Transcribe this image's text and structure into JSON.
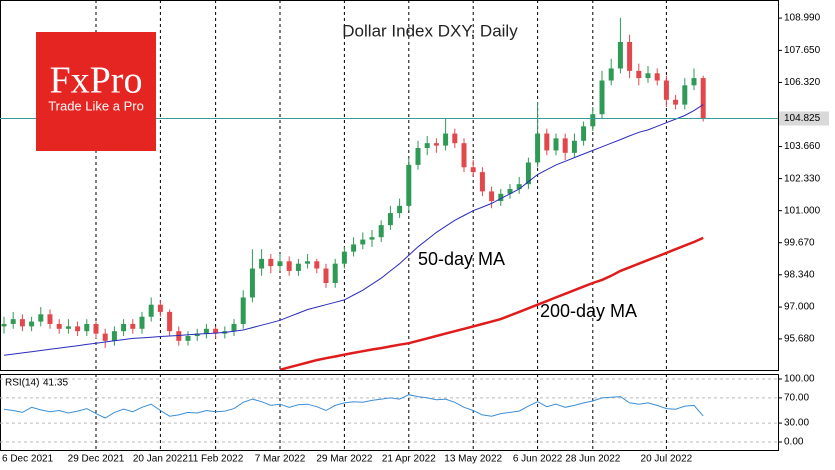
{
  "chart_data": {
    "type": "candlestick",
    "title": "Dollar Index DXY, Daily",
    "logo_text": "FxPro",
    "logo_tagline": "Trade Like a Pro",
    "categories": [
      "6 Dec 2021",
      null,
      null,
      null,
      null,
      null,
      null,
      null,
      null,
      null,
      "29 Dec 2021",
      null,
      null,
      null,
      null,
      null,
      null,
      "20 Jan 2022",
      null,
      null,
      null,
      null,
      null,
      "11 Feb 2022",
      null,
      null,
      null,
      null,
      null,
      null,
      "7 Mar 2022",
      null,
      null,
      null,
      null,
      null,
      null,
      "29 Mar 2022",
      null,
      null,
      null,
      null,
      null,
      null,
      "21 Apr 2022",
      null,
      null,
      null,
      null,
      null,
      null,
      "13 May 2022",
      null,
      null,
      null,
      null,
      null,
      null,
      "6 Jun 2022",
      null,
      null,
      null,
      null,
      null,
      "28 Jun 2022",
      null,
      null,
      null,
      null,
      null,
      null,
      null,
      "20 Jul 2022",
      null,
      null,
      null,
      null
    ],
    "open": [
      96.2,
      96.3,
      96.5,
      96.2,
      96.4,
      96.7,
      96.3,
      96.1,
      96.2,
      96.0,
      96.3,
      95.9,
      95.6,
      96.0,
      96.3,
      96.1,
      96.6,
      97.1,
      96.8,
      96.0,
      95.6,
      95.8,
      95.9,
      96.1,
      95.9,
      96.0,
      96.3,
      97.4,
      98.6,
      99.0,
      98.7,
      98.9,
      98.5,
      98.8,
      98.9,
      98.6,
      98.0,
      98.8,
      99.3,
      99.6,
      99.8,
      99.9,
      100.4,
      100.9,
      101.2,
      102.9,
      103.6,
      103.8,
      103.7,
      104.2,
      103.8,
      102.8,
      102.6,
      101.8,
      101.4,
      101.7,
      101.9,
      102.1,
      103.0,
      104.2,
      103.5,
      104.0,
      103.4,
      103.9,
      104.5,
      105.0,
      106.4,
      106.9,
      108.0,
      106.8,
      106.5,
      106.7,
      106.4,
      105.6,
      105.4,
      106.2,
      106.5
    ],
    "high": [
      96.6,
      96.8,
      96.7,
      96.6,
      97.0,
      96.9,
      96.5,
      96.5,
      96.4,
      96.5,
      96.4,
      96.1,
      96.2,
      96.5,
      96.5,
      96.8,
      97.4,
      97.3,
      96.9,
      96.2,
      96.0,
      96.1,
      96.3,
      96.2,
      96.2,
      96.5,
      97.7,
      99.4,
      99.4,
      99.2,
      99.2,
      99.1,
      99.0,
      99.2,
      99.0,
      98.8,
      99.0,
      99.5,
      99.9,
      100.1,
      100.2,
      100.6,
      101.2,
      101.5,
      103.2,
      103.9,
      104.1,
      104.0,
      104.8,
      104.4,
      104.0,
      103.1,
      102.8,
      102.0,
      101.9,
      102.1,
      102.4,
      103.2,
      105.5,
      104.4,
      104.2,
      104.2,
      104.2,
      104.7,
      105.3,
      106.8,
      107.3,
      109.0,
      108.3,
      107.1,
      107.0,
      106.9,
      106.6,
      105.8,
      106.5,
      106.9,
      106.6
    ],
    "low": [
      95.9,
      96.1,
      96.0,
      96.0,
      96.2,
      96.1,
      95.9,
      95.9,
      95.8,
      95.8,
      95.7,
      95.3,
      95.4,
      95.8,
      95.9,
      95.9,
      96.4,
      96.6,
      95.8,
      95.4,
      95.4,
      95.6,
      95.7,
      95.7,
      95.7,
      95.8,
      96.1,
      97.2,
      98.3,
      98.4,
      98.5,
      98.3,
      98.3,
      98.6,
      98.4,
      97.8,
      97.8,
      98.6,
      99.1,
      99.4,
      99.5,
      99.7,
      100.2,
      100.7,
      101.0,
      102.7,
      103.3,
      103.4,
      103.5,
      103.6,
      102.6,
      102.4,
      101.6,
      101.1,
      101.2,
      101.5,
      101.7,
      101.9,
      102.8,
      103.3,
      103.3,
      103.1,
      103.2,
      103.7,
      104.3,
      104.8,
      106.2,
      106.7,
      106.5,
      106.2,
      106.3,
      106.2,
      105.3,
      105.2,
      105.2,
      106.0,
      104.7
    ],
    "close": [
      96.3,
      96.5,
      96.2,
      96.4,
      96.7,
      96.3,
      96.1,
      96.2,
      96.0,
      96.3,
      95.9,
      95.6,
      96.0,
      96.3,
      96.1,
      96.6,
      97.1,
      96.8,
      96.0,
      95.6,
      95.8,
      95.9,
      96.1,
      95.9,
      96.0,
      96.3,
      97.4,
      98.6,
      99.0,
      98.7,
      98.9,
      98.5,
      98.8,
      98.9,
      98.6,
      98.0,
      98.8,
      99.3,
      99.6,
      99.8,
      99.9,
      100.4,
      100.9,
      101.2,
      102.9,
      103.6,
      103.8,
      103.7,
      104.2,
      103.8,
      102.8,
      102.6,
      101.8,
      101.4,
      101.7,
      101.9,
      102.1,
      103.0,
      104.2,
      103.5,
      104.0,
      103.4,
      103.9,
      104.5,
      105.0,
      106.4,
      106.9,
      108.0,
      106.8,
      106.5,
      106.7,
      106.4,
      105.6,
      105.4,
      106.2,
      106.5,
      104.825
    ],
    "colors": {
      "up": "#2f9a55",
      "down": "#e2474b",
      "last_price": "#3a9a96"
    },
    "last_price_line": true,
    "ylim": [
      94.39,
      109.74
    ],
    "yticks": [
      {
        "value": 95.68,
        "label": "95.680"
      },
      {
        "value": 97,
        "label": "97.000"
      },
      {
        "value": 98.34,
        "label": "98.340"
      },
      {
        "value": 99.67,
        "label": "99.670"
      },
      {
        "value": 101,
        "label": "101.000"
      },
      {
        "value": 102.33,
        "label": "102.330"
      },
      {
        "value": 103.66,
        "label": "103.660"
      },
      {
        "value": 106.32,
        "label": "106.320"
      },
      {
        "value": 107.65,
        "label": "107.650"
      },
      {
        "value": 108.99,
        "label": "108.990"
      }
    ],
    "overlays": [
      {
        "name": "50-day MA",
        "color": "#2b2bbd",
        "values": [
          95.0,
          95.05,
          95.1,
          95.15,
          95.2,
          95.25,
          95.3,
          95.35,
          95.4,
          95.45,
          95.5,
          95.55,
          95.6,
          95.65,
          95.7,
          95.72,
          95.75,
          95.78,
          95.8,
          95.82,
          95.85,
          95.88,
          95.9,
          95.92,
          95.95,
          96.0,
          96.05,
          96.15,
          96.25,
          96.35,
          96.45,
          96.6,
          96.75,
          96.9,
          97.0,
          97.1,
          97.2,
          97.3,
          97.5,
          97.7,
          97.95,
          98.2,
          98.5,
          98.8,
          99.15,
          99.5,
          99.8,
          100.1,
          100.35,
          100.6,
          100.8,
          101.0,
          101.15,
          101.3,
          101.5,
          101.7,
          101.9,
          102.2,
          102.5,
          102.7,
          102.9,
          103.05,
          103.2,
          103.35,
          103.5,
          103.65,
          103.8,
          103.95,
          104.1,
          104.25,
          104.35,
          104.5,
          104.65,
          104.8,
          104.95,
          105.15,
          105.4
        ]
      },
      {
        "name": "200-day MA",
        "color": "#e01b1b",
        "values": [
          null,
          null,
          null,
          null,
          null,
          null,
          null,
          null,
          null,
          null,
          null,
          null,
          null,
          null,
          null,
          null,
          null,
          null,
          null,
          null,
          null,
          null,
          null,
          null,
          null,
          null,
          null,
          null,
          null,
          null,
          94.4,
          94.5,
          94.6,
          94.7,
          94.8,
          94.88,
          94.95,
          95.03,
          95.1,
          95.17,
          95.24,
          95.3,
          95.37,
          95.44,
          95.5,
          95.6,
          95.7,
          95.8,
          95.9,
          96.0,
          96.1,
          96.2,
          96.3,
          96.4,
          96.5,
          96.65,
          96.8,
          96.95,
          97.1,
          97.25,
          97.4,
          97.55,
          97.7,
          97.85,
          98.0,
          98.13,
          98.3,
          98.5,
          98.65,
          98.8,
          98.95,
          99.1,
          99.25,
          99.4,
          99.55,
          99.7,
          99.87
        ]
      }
    ],
    "rsi": {
      "label": "RSI(14)",
      "color": "#3b8fd6",
      "values": [
        52,
        50,
        47,
        55,
        51,
        48,
        50,
        46,
        49,
        53,
        45,
        38,
        47,
        52,
        48,
        55,
        60,
        50,
        41,
        43,
        47,
        46,
        50,
        48,
        49,
        53,
        63,
        68,
        64,
        58,
        60,
        55,
        59,
        60,
        56,
        50,
        58,
        62,
        64,
        63,
        66,
        68,
        70,
        68,
        75,
        72,
        70,
        67,
        68,
        63,
        55,
        50,
        43,
        41,
        45,
        47,
        49,
        57,
        64,
        56,
        60,
        55,
        58,
        62,
        65,
        70,
        71,
        72,
        62,
        60,
        62,
        58,
        53,
        52,
        57,
        58,
        41.35
      ],
      "ylim": [
        -12.7,
        107.9
      ],
      "yticks": [
        {
          "value": 0,
          "label": "0.00"
        },
        {
          "value": 30,
          "label": "30.00"
        },
        {
          "value": 70,
          "label": "70.00"
        },
        {
          "value": 100,
          "label": "100.00"
        }
      ]
    }
  }
}
